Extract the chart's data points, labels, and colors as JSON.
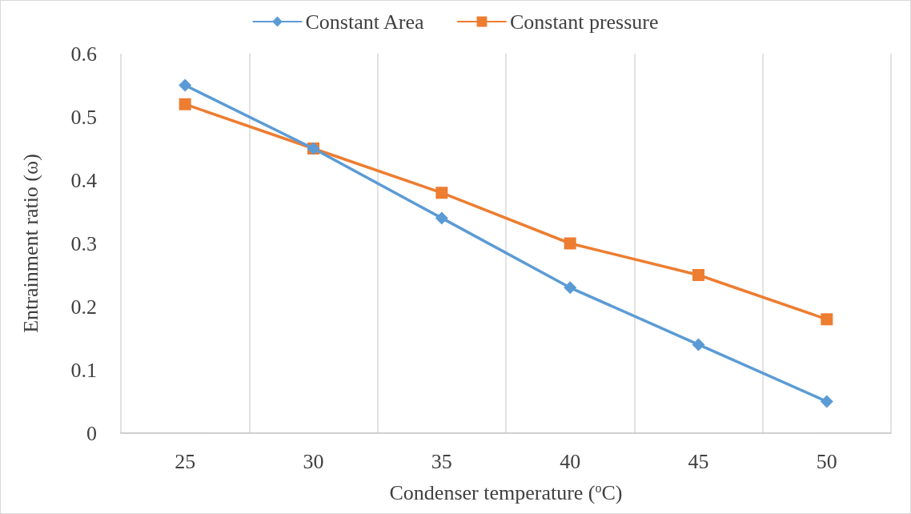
{
  "chart_data": {
    "type": "line",
    "xlabel": "Condenser temperature ($^{o}$C)",
    "ylabel": "Entrainment ratio (ω)",
    "categories": [
      "25",
      "30",
      "35",
      "40",
      "45",
      "50"
    ],
    "series": [
      {
        "name": "Constant Area",
        "color": "#5b9bd5",
        "marker": "diamond",
        "values": [
          0.55,
          0.45,
          0.34,
          0.23,
          0.14,
          0.05
        ]
      },
      {
        "name": "Constant pressure",
        "color": "#ed7d31",
        "marker": "square",
        "values": [
          0.52,
          0.45,
          0.38,
          0.3,
          0.25,
          0.18
        ]
      }
    ],
    "ylim": [
      0,
      0.6
    ],
    "yticks": [
      0,
      0.1,
      0.2,
      0.3,
      0.4,
      0.5,
      0.6
    ],
    "grid": "x",
    "legend": "top",
    "line_style": "solid"
  }
}
